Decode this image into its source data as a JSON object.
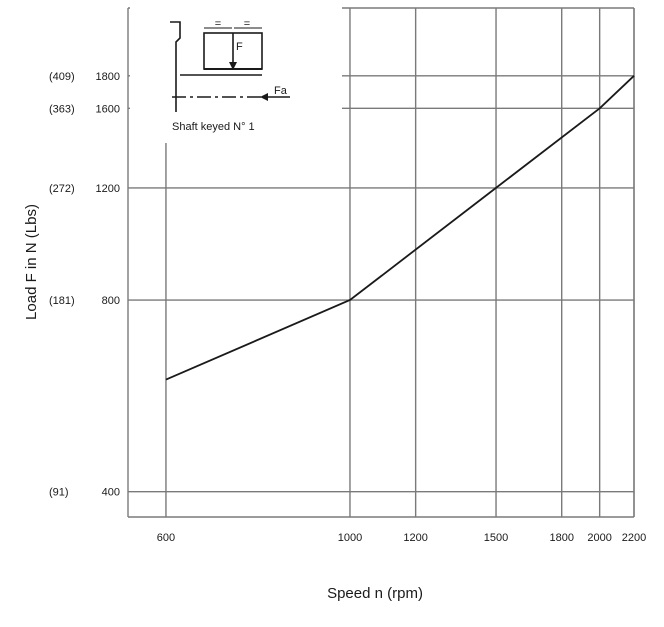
{
  "chart_data": {
    "type": "line",
    "xlabel": "Speed n (rpm)",
    "ylabel": "Load F in N (Lbs)",
    "x_scale": "log",
    "y_scale": "log",
    "xlim": [
      540,
      2200
    ],
    "ylim": [
      365,
      2300
    ],
    "grid": true,
    "x_ticks": [
      {
        "value": 600,
        "label": "600"
      },
      {
        "value": 1000,
        "label": "1000"
      },
      {
        "value": 1200,
        "label": "1200"
      },
      {
        "value": 1500,
        "label": "1500"
      },
      {
        "value": 1800,
        "label": "1800"
      },
      {
        "value": 2000,
        "label": "2000"
      },
      {
        "value": 2200,
        "label": "2200"
      }
    ],
    "y_ticks": [
      {
        "value": 400,
        "label": "400",
        "alt_label": "(91)"
      },
      {
        "value": 800,
        "label": "800",
        "alt_label": "(181)"
      },
      {
        "value": 1200,
        "label": "1200",
        "alt_label": "(272)"
      },
      {
        "value": 1600,
        "label": "1600",
        "alt_label": "(363)"
      },
      {
        "value": 1800,
        "label": "1800",
        "alt_label": "(409)"
      }
    ],
    "series": [
      {
        "x": [
          600,
          1000,
          1500,
          2000,
          2200
        ],
        "y": [
          600,
          800,
          1200,
          1600,
          1800
        ]
      }
    ]
  },
  "inset": {
    "caption": "Shaft keyed N° 1",
    "force_label": "F",
    "axial_label": "Fa",
    "equal_mark_left": "=",
    "equal_mark_right": "="
  },
  "colors": {
    "line": "#1a1a1a",
    "grid": "#7a7a7a",
    "text": "#1a1a1a"
  }
}
